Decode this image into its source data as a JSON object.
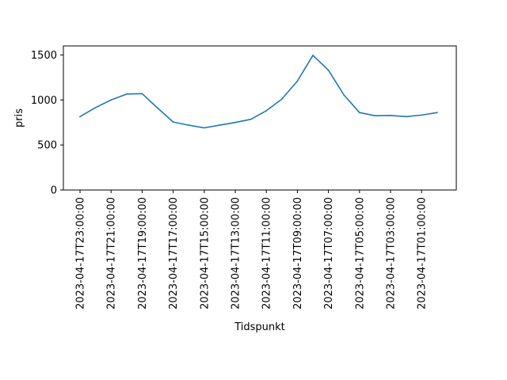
{
  "chart_data": {
    "type": "line",
    "xlabel": "Tidspunkt",
    "ylabel": "pris",
    "ylim": [
      0,
      1600
    ],
    "y_ticks": [
      0,
      500,
      1000,
      1500
    ],
    "grid": false,
    "x_order": "descending",
    "x_tick_labels": [
      "2023-04-17T23:00:00",
      "2023-04-17T21:00:00",
      "2023-04-17T19:00:00",
      "2023-04-17T17:00:00",
      "2023-04-17T15:00:00",
      "2023-04-17T13:00:00",
      "2023-04-17T11:00:00",
      "2023-04-17T09:00:00",
      "2023-04-17T07:00:00",
      "2023-04-17T05:00:00",
      "2023-04-17T03:00:00",
      "2023-04-17T01:00:00"
    ],
    "x": [
      "2023-04-17T23:00:00",
      "2023-04-17T22:00:00",
      "2023-04-17T21:00:00",
      "2023-04-17T20:00:00",
      "2023-04-17T19:00:00",
      "2023-04-17T18:00:00",
      "2023-04-17T17:00:00",
      "2023-04-17T16:00:00",
      "2023-04-17T15:00:00",
      "2023-04-17T14:00:00",
      "2023-04-17T13:00:00",
      "2023-04-17T12:00:00",
      "2023-04-17T11:00:00",
      "2023-04-17T10:00:00",
      "2023-04-17T09:00:00",
      "2023-04-17T08:00:00",
      "2023-04-17T07:00:00",
      "2023-04-17T06:00:00",
      "2023-04-17T05:00:00",
      "2023-04-17T04:00:00",
      "2023-04-17T03:00:00",
      "2023-04-17T02:00:00",
      "2023-04-17T01:00:00",
      "2023-04-17T00:00:00"
    ],
    "series": [
      {
        "color": "#1f77b4",
        "values": [
          815,
          915,
          1000,
          1065,
          1070,
          910,
          755,
          720,
          690,
          720,
          750,
          785,
          880,
          1010,
          1210,
          1495,
          1330,
          1055,
          860,
          825,
          828,
          815,
          832,
          860
        ]
      }
    ]
  }
}
